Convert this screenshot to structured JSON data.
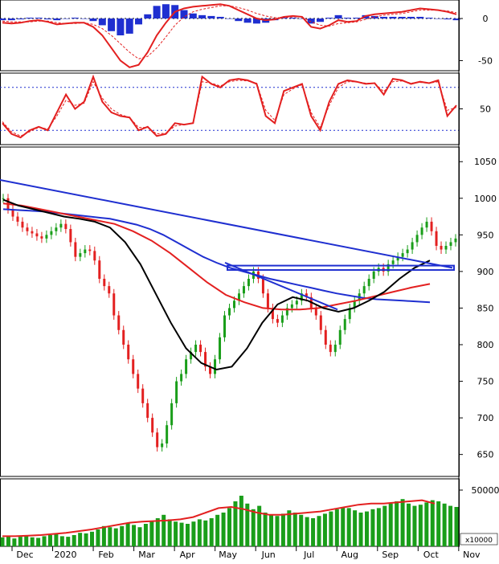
{
  "chart_data": [
    {
      "type": "line",
      "panel": "macd",
      "y_ticks": [
        0,
        -50
      ],
      "ylim": [
        -62,
        22
      ],
      "zero_line": "dotted",
      "series": [
        {
          "color": "#e32020",
          "style": "solid",
          "values": [
            -5,
            -6,
            -5,
            -3,
            -2,
            -4,
            -7,
            -6,
            -5,
            -5,
            -10,
            -20,
            -35,
            -50,
            -58,
            -55,
            -40,
            -20,
            -5,
            8,
            12,
            14,
            15,
            16,
            17,
            15,
            10,
            5,
            0,
            -2,
            -1,
            2,
            3,
            2,
            -10,
            -12,
            -8,
            -2,
            -4,
            -3,
            3,
            5,
            6,
            7,
            8,
            10,
            12,
            11,
            10,
            8,
            5
          ]
        },
        {
          "color": "#e32020",
          "style": "dashed",
          "values": [
            -3,
            -4,
            -4,
            -4,
            -3,
            -3,
            -5,
            -6,
            -6,
            -5,
            -7,
            -12,
            -20,
            -30,
            -40,
            -48,
            -45,
            -35,
            -22,
            -8,
            2,
            8,
            11,
            13,
            15,
            15,
            13,
            10,
            6,
            3,
            1,
            1,
            2,
            2,
            -4,
            -8,
            -9,
            -6,
            -5,
            -4,
            -1,
            2,
            4,
            5,
            6,
            8,
            10,
            10,
            10,
            9,
            7
          ]
        }
      ],
      "histogram": {
        "color": "#1f2fd0",
        "values": [
          -2,
          -2,
          -1,
          1,
          1,
          -1,
          -2,
          0,
          1,
          0,
          -3,
          -8,
          -15,
          -20,
          -18,
          -7,
          5,
          15,
          17,
          16,
          10,
          6,
          4,
          3,
          2,
          0,
          -3,
          -5,
          -6,
          -5,
          -2,
          1,
          1,
          0,
          -6,
          -4,
          1,
          4,
          1,
          1,
          4,
          3,
          2,
          2,
          2,
          2,
          2,
          1,
          0,
          -1,
          -2
        ]
      }
    },
    {
      "type": "line",
      "panel": "stochastic",
      "y_ticks": [
        50
      ],
      "ylim": [
        0,
        100
      ],
      "reference_lines": [
        80,
        20
      ],
      "series": [
        {
          "color": "#e32020",
          "style": "solid",
          "values": [
            30,
            15,
            10,
            20,
            25,
            20,
            45,
            70,
            50,
            60,
            95,
            60,
            45,
            40,
            38,
            20,
            25,
            12,
            15,
            30,
            28,
            30,
            95,
            85,
            80,
            90,
            92,
            90,
            85,
            40,
            30,
            75,
            80,
            85,
            40,
            20,
            60,
            85,
            90,
            88,
            85,
            86,
            70,
            92,
            90,
            85,
            88,
            86,
            90,
            40,
            55
          ]
        },
        {
          "color": "#e32020",
          "style": "dashed",
          "values": [
            32,
            18,
            12,
            18,
            24,
            22,
            40,
            62,
            55,
            58,
            88,
            65,
            50,
            42,
            38,
            24,
            24,
            15,
            16,
            26,
            28,
            30,
            88,
            86,
            82,
            88,
            90,
            89,
            86,
            48,
            34,
            70,
            78,
            84,
            45,
            24,
            55,
            80,
            88,
            88,
            86,
            86,
            74,
            88,
            89,
            86,
            87,
            86,
            88,
            48,
            52
          ]
        }
      ]
    },
    {
      "type": "candlestick",
      "panel": "price",
      "x_tick_labels": [
        "Dec",
        "2020",
        "Feb",
        "Mar",
        "Apr",
        "May",
        "Jun",
        "Jul",
        "Aug",
        "Sep",
        "Oct",
        "Nov"
      ],
      "y_ticks": [
        1050,
        1000,
        950,
        900,
        850,
        800,
        750,
        700,
        650
      ],
      "ylim": [
        620,
        1070
      ],
      "close": [
        1000,
        985,
        975,
        968,
        960,
        955,
        952,
        948,
        945,
        950,
        955,
        960,
        965,
        958,
        940,
        920,
        925,
        930,
        928,
        915,
        890,
        880,
        870,
        840,
        820,
        800,
        780,
        760,
        740,
        720,
        700,
        680,
        660,
        665,
        690,
        720,
        750,
        760,
        780,
        790,
        800,
        790,
        770,
        760,
        780,
        810,
        840,
        850,
        860,
        870,
        880,
        890,
        900,
        890,
        870,
        850,
        835,
        830,
        840,
        850,
        855,
        860,
        870,
        865,
        850,
        840,
        820,
        800,
        790,
        800,
        820,
        835,
        850,
        860,
        870,
        880,
        890,
        900,
        905,
        900,
        910,
        915,
        920,
        925,
        930,
        940,
        950,
        960,
        968,
        955,
        935,
        930,
        935,
        940,
        945
      ],
      "up_color": "#1a9e1a",
      "down_color": "#e32020",
      "moving_averages": [
        {
          "color": "#1f2fd0",
          "values": [
            985,
            984,
            983,
            982,
            980,
            978,
            976,
            974,
            972,
            968,
            964,
            958,
            950,
            940,
            930,
            920,
            912,
            905,
            900,
            895,
            890,
            886,
            882,
            878,
            874,
            870,
            867,
            864,
            862,
            861,
            860,
            859,
            858
          ]
        },
        {
          "color": "#e32020",
          "values": [
            993,
            990,
            985,
            980,
            975,
            970,
            965,
            955,
            942,
            925,
            905,
            885,
            868,
            858,
            850,
            848,
            848,
            850,
            855,
            860,
            866,
            872,
            878,
            883
          ]
        },
        {
          "color": "#000000",
          "values": [
            998,
            990,
            985,
            980,
            975,
            972,
            968,
            960,
            940,
            910,
            870,
            830,
            795,
            775,
            766,
            770,
            795,
            830,
            855,
            865,
            860,
            850,
            845,
            850,
            860,
            872,
            890,
            905,
            915
          ]
        }
      ],
      "trendline": {
        "color": "#1f2fd0",
        "from": 1025,
        "to": 905
      },
      "trendline_2": {
        "color": "#1f2fd0",
        "from": 912,
        "to": 848
      },
      "box": {
        "color": "#1f2fd0",
        "low": 902,
        "high": 908
      }
    },
    {
      "type": "bar",
      "panel": "volume",
      "y_ticks": [
        50000
      ],
      "y_label_text": "50000",
      "multiplier_label": "x10000",
      "ylim": [
        0,
        60000
      ],
      "bar_color": "#1a9e1a",
      "ma_color": "#e32020",
      "values": [
        8000,
        9000,
        7000,
        8500,
        9500,
        8000,
        7500,
        9000,
        10000,
        11000,
        9000,
        8500,
        10000,
        12000,
        11500,
        13000,
        15000,
        18000,
        17000,
        16000,
        18000,
        21000,
        19000,
        17000,
        20000,
        22000,
        25000,
        28000,
        24000,
        22000,
        21000,
        20000,
        22000,
        24000,
        23000,
        25000,
        28000,
        30000,
        34000,
        40000,
        45000,
        38000,
        33000,
        36000,
        30000,
        28000,
        27000,
        29000,
        32000,
        30000,
        28000,
        26000,
        25000,
        27000,
        29000,
        31000,
        33000,
        35000,
        34000,
        32000,
        30000,
        31000,
        33000,
        34000,
        36000,
        38000,
        40000,
        42000,
        38000,
        36000,
        37000,
        39000,
        41000,
        40000,
        38000,
        36000,
        35000
      ],
      "ma_values": [
        9000,
        9000,
        9500,
        10000,
        11000,
        12000,
        13500,
        15000,
        17000,
        19000,
        21000,
        22000,
        22500,
        23000,
        24000,
        26000,
        30000,
        34000,
        35000,
        33000,
        30000,
        28000,
        28000,
        29000,
        30000,
        31000,
        33000,
        35000,
        37000,
        38000,
        38000,
        39000,
        40000,
        41000,
        38000
      ]
    }
  ]
}
